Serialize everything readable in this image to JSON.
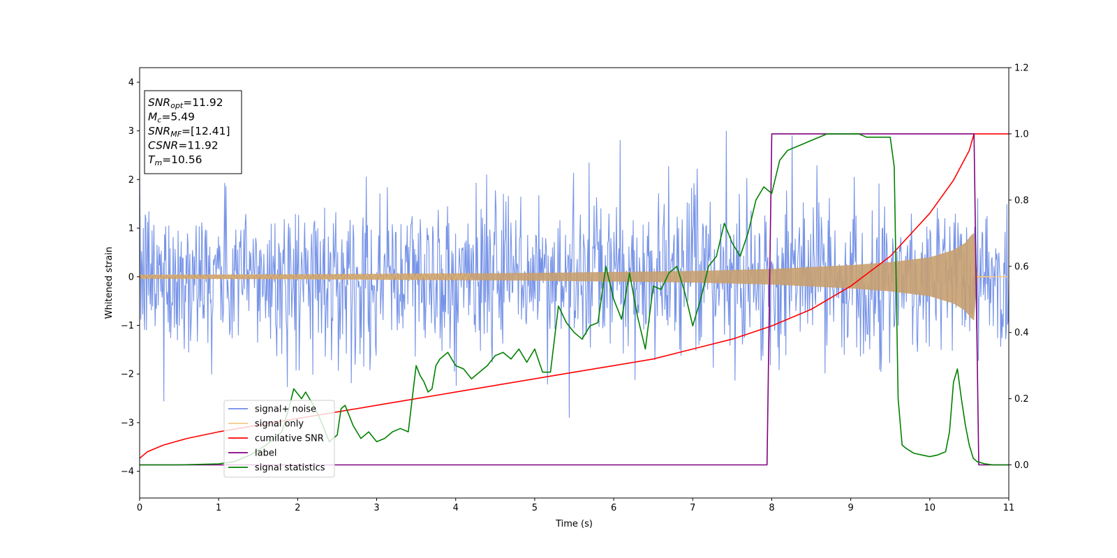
{
  "chart_data": {
    "type": "line",
    "xlabel": "Time (s)",
    "ylabel": "Whitened strain",
    "xlim": [
      0,
      11
    ],
    "ylim": [
      -4.55,
      4.3
    ],
    "y2lim": [
      -0.1,
      1.2
    ],
    "xticks": [
      "0",
      "1",
      "2",
      "3",
      "4",
      "5",
      "6",
      "7",
      "8",
      "9",
      "10",
      "11"
    ],
    "yticks": [
      "−4",
      "−3",
      "−2",
      "−1",
      "0",
      "1",
      "2",
      "3",
      "4"
    ],
    "y2ticks": [
      "0.0",
      "0.2",
      "0.4",
      "0.6",
      "0.8",
      "1.0",
      "1.2"
    ],
    "grid": false,
    "legend_position": "lower-left",
    "annotation_box": {
      "lines": [
        {
          "sym": "SNR",
          "sub": "opt",
          "val": "=11.92"
        },
        {
          "sym": "M",
          "sub": "c",
          "val": "=5.49"
        },
        {
          "sym": "SNR",
          "sub": "MF",
          "val": "=[12.41]"
        },
        {
          "sym": "CSNR",
          "sub": "",
          "val": "=11.92"
        },
        {
          "sym": "T",
          "sub": "m",
          "val": "=10.56"
        }
      ]
    },
    "series": [
      {
        "name": "signal+ noise",
        "color": "#6f8de6",
        "axis": "left",
        "kind": "noise",
        "noise_std": 0.78,
        "x_range": [
          0,
          11
        ],
        "samples": 1400
      },
      {
        "name": "signal only",
        "color": "#f5c98a",
        "axis": "left",
        "kind": "chirp_envelope",
        "merger_time": 10.56,
        "x_range": [
          0,
          11
        ],
        "envelope_x": [
          0,
          1,
          2,
          3,
          4,
          5,
          6,
          7,
          8,
          9,
          9.5,
          10,
          10.3,
          10.45,
          10.52,
          10.56,
          10.6,
          11
        ],
        "envelope_y": [
          0.04,
          0.045,
          0.05,
          0.06,
          0.07,
          0.08,
          0.1,
          0.12,
          0.16,
          0.24,
          0.3,
          0.4,
          0.55,
          0.7,
          0.85,
          0.9,
          0.02,
          0.0
        ]
      },
      {
        "name": "cumilative SNR",
        "color": "#ff0000",
        "axis": "right",
        "x": [
          0,
          0.1,
          0.3,
          0.6,
          1,
          1.5,
          2,
          2.5,
          3,
          3.5,
          4,
          4.5,
          5,
          5.5,
          6,
          6.5,
          7,
          7.5,
          8,
          8.5,
          9,
          9.5,
          10,
          10.3,
          10.5,
          10.56,
          11
        ],
        "y": [
          0.02,
          0.04,
          0.06,
          0.08,
          0.1,
          0.12,
          0.14,
          0.16,
          0.18,
          0.2,
          0.22,
          0.24,
          0.26,
          0.28,
          0.3,
          0.32,
          0.35,
          0.38,
          0.42,
          0.47,
          0.54,
          0.63,
          0.76,
          0.86,
          0.95,
          1.0,
          1.0
        ]
      },
      {
        "name": "label",
        "color": "#800080",
        "axis": "right",
        "x": [
          0,
          7.94,
          8.0,
          10.56,
          10.62,
          11
        ],
        "y": [
          0.0,
          0.0,
          1.0,
          1.0,
          0.0,
          0.0
        ]
      },
      {
        "name": "signal statistics",
        "color": "#008000",
        "axis": "right",
        "x": [
          0,
          0.5,
          1,
          1.2,
          1.4,
          1.6,
          1.8,
          1.9,
          1.95,
          2.05,
          2.1,
          2.2,
          2.3,
          2.4,
          2.5,
          2.55,
          2.6,
          2.7,
          2.8,
          2.9,
          3,
          3.1,
          3.2,
          3.3,
          3.4,
          3.5,
          3.55,
          3.6,
          3.65,
          3.7,
          3.75,
          3.8,
          3.85,
          3.9,
          4.0,
          4.1,
          4.2,
          4.3,
          4.4,
          4.5,
          4.6,
          4.7,
          4.8,
          4.9,
          5.0,
          5.1,
          5.2,
          5.3,
          5.4,
          5.5,
          5.6,
          5.7,
          5.8,
          5.9,
          6.0,
          6.1,
          6.2,
          6.3,
          6.4,
          6.5,
          6.6,
          6.7,
          6.8,
          6.9,
          7.0,
          7.1,
          7.2,
          7.3,
          7.4,
          7.5,
          7.6,
          7.7,
          7.8,
          7.9,
          8.0,
          8.1,
          8.2,
          8.3,
          8.4,
          8.5,
          8.6,
          8.7,
          8.8,
          8.9,
          9.0,
          9.1,
          9.2,
          9.3,
          9.4,
          9.5,
          9.55,
          9.6,
          9.65,
          9.7,
          9.8,
          9.9,
          10.0,
          10.1,
          10.2,
          10.25,
          10.3,
          10.35,
          10.4,
          10.45,
          10.5,
          10.55,
          10.6,
          10.7,
          10.8,
          11
        ],
        "y": [
          0.0,
          0.0,
          0.003,
          0.01,
          0.03,
          0.06,
          0.1,
          0.18,
          0.23,
          0.2,
          0.22,
          0.18,
          0.13,
          0.07,
          0.09,
          0.17,
          0.18,
          0.12,
          0.08,
          0.1,
          0.07,
          0.08,
          0.1,
          0.11,
          0.1,
          0.3,
          0.27,
          0.25,
          0.22,
          0.23,
          0.3,
          0.32,
          0.33,
          0.34,
          0.3,
          0.29,
          0.26,
          0.28,
          0.3,
          0.33,
          0.34,
          0.32,
          0.35,
          0.31,
          0.35,
          0.28,
          0.28,
          0.48,
          0.43,
          0.4,
          0.38,
          0.42,
          0.43,
          0.6,
          0.5,
          0.44,
          0.58,
          0.45,
          0.35,
          0.54,
          0.53,
          0.58,
          0.6,
          0.52,
          0.42,
          0.5,
          0.6,
          0.63,
          0.73,
          0.67,
          0.63,
          0.7,
          0.8,
          0.84,
          0.82,
          0.92,
          0.95,
          0.96,
          0.97,
          0.98,
          0.99,
          1.0,
          1.0,
          1.0,
          1.0,
          1.0,
          0.99,
          0.99,
          0.99,
          0.99,
          0.9,
          0.2,
          0.06,
          0.05,
          0.035,
          0.03,
          0.025,
          0.03,
          0.04,
          0.1,
          0.25,
          0.29,
          0.2,
          0.12,
          0.06,
          0.02,
          0.01,
          0.003,
          0.0,
          0.0
        ]
      }
    ]
  }
}
